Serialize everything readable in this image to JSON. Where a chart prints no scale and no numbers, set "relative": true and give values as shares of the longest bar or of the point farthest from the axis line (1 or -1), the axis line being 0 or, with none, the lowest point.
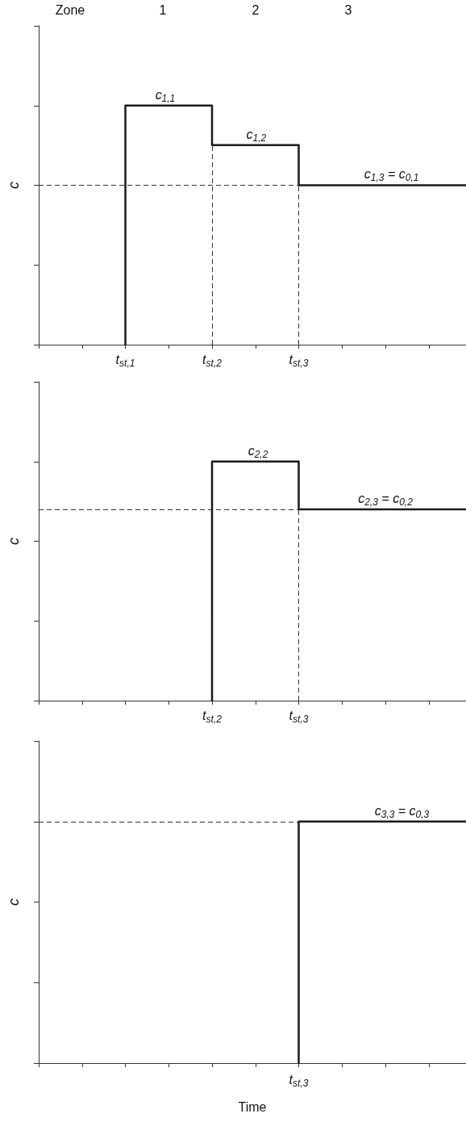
{
  "chart_data": [
    {
      "type": "line",
      "relative": true,
      "ylabel": "c",
      "marker": "none",
      "line_style": "solid",
      "grid": false,
      "tick_labels": "x",
      "xlim": [
        0,
        4.93
      ],
      "xticks": [
        {
          "value": 0,
          "label": null
        },
        {
          "value": 0.5,
          "label": null
        },
        {
          "value": 1,
          "label": "t$_{st,1}$"
        },
        {
          "value": 1.5,
          "label": null
        },
        {
          "value": 2,
          "label": "t$_{st,2}$"
        },
        {
          "value": 2.5,
          "label": null
        },
        {
          "value": 3,
          "label": "t$_{st,3}$"
        },
        {
          "value": 3.5,
          "label": null
        },
        {
          "value": 4,
          "label": null
        },
        {
          "value": 4.5,
          "label": null
        }
      ],
      "series": [
        {
          "color": "#1a1a1a",
          "x": [
            1,
            1,
            2,
            2,
            3,
            3,
            4.93
          ],
          "values": [
            0,
            1,
            1,
            0.835,
            0.835,
            0.667,
            0.667
          ]
        }
      ],
      "ref_lines": [
        {
          "axis": "y",
          "value": 0.667,
          "color": "#333333",
          "line_style": "dashed"
        },
        {
          "axis": "x",
          "value": 2,
          "color": "#333333",
          "line_style": "dashed"
        },
        {
          "axis": "x",
          "value": 3,
          "color": "#333333",
          "line_style": "dashed"
        }
      ],
      "annotations": [
        "Zone",
        "1",
        "2",
        "3",
        {
          "text": "c$_{1,1}$",
          "x": 1.46,
          "y": 1
        },
        {
          "text": "c$_{1,2}$",
          "x": 2.51,
          "y": 0.835
        },
        {
          "text": "c$_{1,3}$ = c$_{0,1}$",
          "x": 4.07,
          "y": 0.667
        }
      ]
    },
    {
      "type": "line",
      "relative": true,
      "ylabel": "c",
      "marker": "none",
      "line_style": "solid",
      "grid": false,
      "tick_labels": "x",
      "xlim": [
        0,
        4.93
      ],
      "xticks": [
        {
          "value": 0,
          "label": null
        },
        {
          "value": 0.5,
          "label": null
        },
        {
          "value": 1,
          "label": null
        },
        {
          "value": 1.5,
          "label": null
        },
        {
          "value": 2,
          "label": "t$_{st,2}$"
        },
        {
          "value": 2.5,
          "label": null
        },
        {
          "value": 3,
          "label": "t$_{st,3}$"
        },
        {
          "value": 3.5,
          "label": null
        },
        {
          "value": 4,
          "label": null
        },
        {
          "value": 4.5,
          "label": null
        }
      ],
      "series": [
        {
          "color": "#1a1a1a",
          "x": [
            2,
            2,
            3,
            3,
            4.93
          ],
          "values": [
            0,
            1,
            1,
            0.8,
            0.8
          ]
        }
      ],
      "ref_lines": [
        {
          "axis": "y",
          "value": 0.8,
          "color": "#333333",
          "line_style": "dashed"
        },
        {
          "axis": "x",
          "value": 3,
          "color": "#333333",
          "line_style": "dashed"
        }
      ],
      "annotations": [
        {
          "text": "c$_{2,2}$",
          "x": 2.53,
          "y": 1
        },
        {
          "text": "c$_{2,3}$ = c$_{0,2}$",
          "x": 4.0,
          "y": 0.8
        }
      ]
    },
    {
      "type": "line",
      "relative": true,
      "ylabel": "c",
      "xlabel": "Time",
      "marker": "none",
      "line_style": "solid",
      "grid": false,
      "tick_labels": false,
      "xlim": [
        0,
        4.93
      ],
      "xticks": [
        {
          "value": 0,
          "label": null
        },
        {
          "value": 0.5,
          "label": null
        },
        {
          "value": 1,
          "label": null
        },
        {
          "value": 1.5,
          "label": null
        },
        {
          "value": 2,
          "label": null
        },
        {
          "value": 2.5,
          "label": null
        },
        {
          "value": 3,
          "label": null
        },
        {
          "value": 3.5,
          "label": null
        },
        {
          "value": 4,
          "label": null
        },
        {
          "value": 4.5,
          "label": null
        }
      ],
      "series": [
        {
          "color": "#1a1a1a",
          "x": [
            3,
            3,
            4.93
          ],
          "values": [
            0,
            1,
            1
          ]
        }
      ],
      "ref_lines": [
        {
          "axis": "y",
          "value": 1,
          "color": "#333333",
          "line_style": "dashed"
        }
      ],
      "annotations": [
        {
          "text": "t$_{st,3}$",
          "x": 3,
          "y": 0
        },
        {
          "text": "c$_{3,3}$ = c$_{0,3}$",
          "x": 4.19,
          "y": 1
        }
      ]
    }
  ]
}
